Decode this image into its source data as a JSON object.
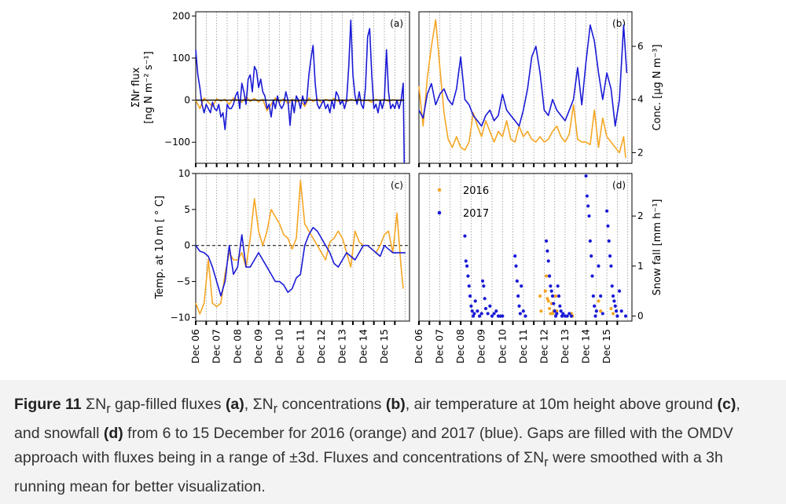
{
  "colors": {
    "y2016": "#f5a623",
    "y2017": "#1a1ad6",
    "zero_line": "#000000",
    "grid": "#888888"
  },
  "legend": {
    "y2016": "2016",
    "y2017": "2017"
  },
  "caption": {
    "fig_label": "Figure 11",
    "t1": " ΣN",
    "sub1": "r",
    "t2": " gap-filled fluxes ",
    "a": "(a)",
    "t3": ", ΣN",
    "sub2": "r",
    "t4": " concentrations ",
    "b": "(b)",
    "t5": ", air temperature at 10m height above ground ",
    "c": "(c)",
    "t6": ", and snowfall ",
    "d": "(d)",
    "t7": " from 6 to 15 December for 2016 (orange) and 2017 (blue). Gaps are filled with the OMDV approach with fluxes being in a range of ±3d. Fluxes and concentrations of ΣN",
    "sub3": "r",
    "t8": " were smoothed with a 3h running mean for better visualization."
  },
  "chart_data": [
    {
      "panel": "(a)",
      "type": "line",
      "ylabel_line1": "ΣNr flux",
      "ylabel_line2": "[ng N m⁻² s⁻¹]",
      "ylim": [
        -150,
        210
      ],
      "xlim": [
        6,
        16.2
      ],
      "yticks": [
        200,
        100,
        0,
        -100
      ],
      "ytick_labels": [
        "200",
        "100",
        "0",
        "−100"
      ],
      "series": [
        {
          "name": "2016",
          "x": [
            6.0,
            6.2,
            6.4,
            6.6,
            6.8,
            7.0,
            7.2,
            7.4,
            7.6,
            7.8,
            8.0,
            8.2,
            8.4,
            8.6,
            8.8,
            9.0,
            9.2,
            9.4,
            9.6,
            9.8,
            10.0,
            10.2,
            10.4,
            10.6,
            10.8,
            11.0,
            11.2,
            11.4,
            11.6,
            11.8,
            12.0,
            12.2,
            12.4,
            12.6,
            12.8,
            13.0,
            13.2,
            13.4,
            13.6,
            13.8,
            14.0,
            14.2,
            14.4,
            14.6,
            14.8,
            15.0,
            15.2,
            15.4,
            15.6,
            15.9
          ],
          "y": [
            0,
            -20,
            5,
            -5,
            -15,
            3,
            -2,
            2,
            -10,
            5,
            0,
            -5,
            8,
            -3,
            4,
            -4,
            2,
            -25,
            -10,
            5,
            -5,
            3,
            -8,
            2,
            -4,
            0,
            -15,
            5,
            -3,
            3,
            -6,
            2,
            -2,
            4,
            -3,
            1,
            -4,
            2,
            -1,
            3,
            -2,
            0,
            -5,
            2,
            -1,
            2,
            -3,
            1,
            0,
            -1
          ]
        },
        {
          "name": "2017",
          "x": [
            6.0,
            6.1,
            6.2,
            6.3,
            6.4,
            6.5,
            6.6,
            6.7,
            6.8,
            6.9,
            7.0,
            7.1,
            7.2,
            7.3,
            7.4,
            7.5,
            7.6,
            7.7,
            7.8,
            7.9,
            8.0,
            8.1,
            8.2,
            8.3,
            8.4,
            8.5,
            8.6,
            8.7,
            8.8,
            8.9,
            9.0,
            9.1,
            9.2,
            9.3,
            9.4,
            9.5,
            9.6,
            9.7,
            9.8,
            9.9,
            10.0,
            10.1,
            10.2,
            10.3,
            10.4,
            10.5,
            10.6,
            10.7,
            10.8,
            10.9,
            11.0,
            11.1,
            11.2,
            11.3,
            11.4,
            11.5,
            11.6,
            11.7,
            11.8,
            11.9,
            12.0,
            12.1,
            12.2,
            12.3,
            12.4,
            12.5,
            12.6,
            12.7,
            12.8,
            12.9,
            13.0,
            13.1,
            13.2,
            13.3,
            13.4,
            13.5,
            13.6,
            13.7,
            13.8,
            13.9,
            14.0,
            14.1,
            14.2,
            14.3,
            14.4,
            14.5,
            14.6,
            14.7,
            14.8,
            14.9,
            15.0,
            15.1,
            15.2,
            15.3,
            15.4,
            15.5,
            15.6,
            15.7,
            15.8,
            15.9,
            15.95
          ],
          "y": [
            120,
            60,
            30,
            -10,
            -30,
            -10,
            -20,
            -30,
            -5,
            -20,
            -25,
            -10,
            -40,
            -30,
            -70,
            -10,
            -20,
            -20,
            -10,
            10,
            20,
            -20,
            40,
            20,
            -10,
            50,
            60,
            20,
            80,
            70,
            30,
            50,
            20,
            10,
            -20,
            -10,
            -40,
            0,
            -20,
            10,
            -10,
            -20,
            -10,
            20,
            0,
            -60,
            0,
            -30,
            10,
            0,
            -20,
            10,
            -10,
            0,
            60,
            100,
            130,
            40,
            -10,
            -20,
            -10,
            0,
            -20,
            -10,
            -30,
            0,
            -20,
            20,
            10,
            -10,
            0,
            -20,
            0,
            80,
            190,
            60,
            10,
            -10,
            20,
            -10,
            -20,
            30,
            150,
            170,
            60,
            -20,
            -10,
            -30,
            0,
            -20,
            0,
            120,
            20,
            -20,
            -10,
            -20,
            0,
            -20,
            0,
            40,
            -150
          ]
        }
      ]
    },
    {
      "panel": "(b)",
      "type": "line",
      "ylabel_right": "Conc. [µg N m⁻³]",
      "ylim": [
        1.6,
        7.3
      ],
      "xlim": [
        6,
        16.2
      ],
      "yticks": [
        2,
        4,
        6
      ],
      "ytick_labels": [
        "2",
        "4",
        "6"
      ],
      "series": [
        {
          "name": "2016",
          "x": [
            6.0,
            6.2,
            6.4,
            6.6,
            6.8,
            7.0,
            7.2,
            7.4,
            7.6,
            7.8,
            8.0,
            8.2,
            8.4,
            8.6,
            8.8,
            9.0,
            9.2,
            9.4,
            9.6,
            9.8,
            10.0,
            10.2,
            10.4,
            10.6,
            10.8,
            11.0,
            11.2,
            11.4,
            11.6,
            11.8,
            12.0,
            12.2,
            12.4,
            12.6,
            12.8,
            13.0,
            13.2,
            13.4,
            13.6,
            13.8,
            14.0,
            14.2,
            14.4,
            14.6,
            14.8,
            15.0,
            15.2,
            15.4,
            15.6,
            15.8,
            15.9
          ],
          "y": [
            4.5,
            3.0,
            4.8,
            6.0,
            7.0,
            5.2,
            3.5,
            2.5,
            2.2,
            2.6,
            2.2,
            2.1,
            2.4,
            3.5,
            3.0,
            2.6,
            3.2,
            2.8,
            2.4,
            2.8,
            2.6,
            3.2,
            2.5,
            2.4,
            3.0,
            2.6,
            2.8,
            2.5,
            2.4,
            2.6,
            2.4,
            2.5,
            2.8,
            3.0,
            2.6,
            2.4,
            2.7,
            3.8,
            2.5,
            2.4,
            2.4,
            2.3,
            3.6,
            2.2,
            3.3,
            2.6,
            2.4,
            2.2,
            2.0,
            2.6,
            1.8
          ]
        },
        {
          "name": "2017",
          "x": [
            6.0,
            6.2,
            6.4,
            6.6,
            6.8,
            7.0,
            7.2,
            7.4,
            7.6,
            7.8,
            8.0,
            8.2,
            8.4,
            8.6,
            8.8,
            9.0,
            9.2,
            9.4,
            9.6,
            9.8,
            10.0,
            10.2,
            10.4,
            10.6,
            10.8,
            11.0,
            11.2,
            11.4,
            11.6,
            11.8,
            12.0,
            12.2,
            12.4,
            12.6,
            12.8,
            13.0,
            13.2,
            13.4,
            13.6,
            13.8,
            14.0,
            14.2,
            14.4,
            14.6,
            14.8,
            15.0,
            15.2,
            15.4,
            15.6,
            15.8,
            15.95
          ],
          "y": [
            3.6,
            3.3,
            4.2,
            4.6,
            3.8,
            4.2,
            4.4,
            4.0,
            3.8,
            4.4,
            5.6,
            4.0,
            3.8,
            3.4,
            3.2,
            3.0,
            3.4,
            3.6,
            3.2,
            3.4,
            4.2,
            3.6,
            3.4,
            3.2,
            3.0,
            3.6,
            4.4,
            5.6,
            6.0,
            5.0,
            3.6,
            3.4,
            4.0,
            3.6,
            3.4,
            3.2,
            3.6,
            4.0,
            5.2,
            3.8,
            5.4,
            6.8,
            6.2,
            5.0,
            4.0,
            5.0,
            4.4,
            3.0,
            4.0,
            6.8,
            5.0
          ]
        }
      ]
    },
    {
      "panel": "(c)",
      "type": "line",
      "ylabel": "Temp. at 10 m [ ° C]",
      "ylim": [
        -10.5,
        10
      ],
      "xlim": [
        6,
        16.2
      ],
      "yticks": [
        10,
        5,
        0,
        -5,
        -10
      ],
      "ytick_labels": [
        "10",
        "5",
        "0",
        "−5",
        "−10"
      ],
      "series": [
        {
          "name": "2016",
          "x": [
            6.0,
            6.2,
            6.4,
            6.6,
            6.8,
            7.0,
            7.2,
            7.4,
            7.6,
            7.8,
            8.0,
            8.2,
            8.4,
            8.6,
            8.8,
            9.0,
            9.2,
            9.4,
            9.6,
            9.8,
            10.0,
            10.2,
            10.4,
            10.6,
            10.8,
            11.0,
            11.2,
            11.4,
            11.6,
            11.8,
            12.0,
            12.2,
            12.4,
            12.6,
            12.8,
            13.0,
            13.2,
            13.4,
            13.6,
            13.8,
            14.0,
            14.2,
            14.4,
            14.6,
            14.8,
            15.0,
            15.2,
            15.4,
            15.6,
            15.8,
            15.9
          ],
          "y": [
            -8,
            -9.5,
            -8,
            -2,
            -8,
            -8.5,
            -8,
            -4,
            -1,
            -2,
            -2,
            -1,
            -3,
            1,
            6.5,
            2,
            0,
            2,
            5,
            4,
            3,
            1.5,
            1,
            -0.5,
            1,
            9,
            3,
            2,
            1,
            0,
            -1,
            -2,
            0.5,
            1,
            2,
            1,
            -1,
            -3,
            2,
            0.5,
            0,
            0,
            -0.5,
            -1,
            0,
            1.5,
            2,
            -1,
            4.5,
            -3,
            -6
          ]
        },
        {
          "name": "2017",
          "x": [
            6.0,
            6.2,
            6.4,
            6.6,
            6.8,
            7.0,
            7.2,
            7.4,
            7.6,
            7.8,
            8.0,
            8.2,
            8.4,
            8.6,
            8.8,
            9.0,
            9.2,
            9.4,
            9.6,
            9.8,
            10.0,
            10.2,
            10.4,
            10.6,
            10.8,
            11.0,
            11.2,
            11.4,
            11.6,
            11.8,
            12.0,
            12.2,
            12.4,
            12.6,
            12.8,
            13.0,
            13.2,
            13.4,
            13.6,
            13.8,
            14.0,
            14.2,
            14.4,
            14.6,
            14.8,
            15.0,
            15.2,
            15.4,
            15.6,
            15.8,
            16.0
          ],
          "y": [
            0,
            -0.8,
            -1.0,
            -1.5,
            -3,
            -5,
            -7,
            -5,
            0,
            -4,
            -3,
            1.5,
            -3,
            -3,
            -2,
            -1,
            -2,
            -3,
            -4,
            -5,
            -5,
            -5.5,
            -6.5,
            -6,
            -4.5,
            -4,
            0,
            1.5,
            2.5,
            2,
            1,
            0,
            -1,
            -2.5,
            -3,
            -2,
            -1,
            -1.5,
            -2,
            -1,
            0,
            0,
            -0.5,
            -1,
            -1.5,
            0,
            -0.5,
            -1,
            -1,
            -1,
            -1
          ]
        }
      ]
    },
    {
      "panel": "(d)",
      "type": "scatter",
      "ylabel_right": "Snow fall [mm h⁻¹]",
      "ylim": [
        -0.1,
        2.85
      ],
      "xlim": [
        6,
        16.2
      ],
      "yticks": [
        0,
        1,
        2
      ],
      "ytick_labels": [
        "0",
        "1",
        "2"
      ],
      "legend": [
        "2016",
        "2017"
      ],
      "series": [
        {
          "name": "2016",
          "x": [
            11.8,
            11.85,
            12.05,
            12.1,
            12.15,
            12.2,
            12.25,
            12.3,
            12.35,
            12.4,
            12.45,
            12.55,
            12.6,
            13.3,
            13.35,
            14.6,
            14.7,
            15.2,
            15.3
          ],
          "y": [
            0.4,
            0.1,
            0.5,
            0.8,
            0.35,
            0.3,
            0.15,
            0.05,
            0.25,
            0.05,
            0.1,
            0.4,
            0.1,
            0.05,
            0.0,
            0.3,
            0.1,
            0.15,
            0.05
          ]
        },
        {
          "name": "2017",
          "x": [
            8.2,
            8.25,
            8.3,
            8.35,
            8.4,
            8.45,
            8.5,
            8.55,
            8.6,
            8.65,
            8.7,
            8.8,
            8.9,
            9.0,
            9.05,
            9.1,
            9.15,
            9.2,
            9.3,
            9.4,
            9.5,
            9.6,
            9.7,
            9.8,
            9.9,
            10.0,
            10.6,
            10.65,
            10.7,
            10.75,
            10.8,
            10.85,
            10.9,
            11.0,
            11.1,
            12.1,
            12.15,
            12.2,
            12.25,
            12.3,
            12.35,
            12.4,
            12.45,
            12.5,
            12.55,
            12.6,
            12.65,
            12.7,
            12.75,
            12.8,
            12.85,
            12.9,
            13.0,
            13.1,
            13.2,
            13.3,
            14.0,
            14.05,
            14.1,
            14.15,
            14.2,
            14.25,
            14.3,
            14.35,
            14.4,
            14.45,
            14.5,
            14.6,
            14.7,
            14.8,
            15.0,
            15.05,
            15.1,
            15.15,
            15.2,
            15.25,
            15.3,
            15.35,
            15.4,
            15.45,
            15.5,
            15.6,
            15.7,
            15.9
          ],
          "y": [
            1.6,
            1.1,
            1.0,
            0.8,
            0.6,
            0.4,
            0.2,
            0.1,
            0.0,
            0.05,
            0.3,
            0.1,
            0.0,
            0.05,
            0.7,
            0.6,
            0.35,
            0.15,
            0.05,
            0.2,
            0.0,
            0.05,
            0.1,
            0.0,
            0.0,
            0.0,
            1.2,
            1.0,
            0.7,
            0.4,
            0.2,
            0.05,
            0.6,
            0.1,
            0.0,
            1.5,
            1.3,
            1.1,
            0.8,
            0.6,
            0.5,
            0.4,
            0.25,
            0.1,
            0.0,
            0.05,
            0.6,
            0.4,
            0.2,
            0.1,
            0.0,
            0.05,
            0.0,
            0.0,
            0.05,
            0.0,
            2.8,
            2.4,
            2.2,
            2.0,
            1.5,
            1.2,
            0.8,
            0.4,
            0.2,
            0.0,
            0.1,
            1.0,
            0.4,
            0.05,
            2.1,
            1.8,
            1.5,
            1.2,
            1.0,
            0.6,
            0.4,
            0.3,
            0.2,
            0.1,
            0.0,
            0.5,
            0.1,
            0.0
          ]
        }
      ]
    },
    {
      "panel": "shared-x",
      "type": "axis",
      "xtick_labels": [
        "Dec 06",
        "Dec 07",
        "Dec 08",
        "Dec 09",
        "Dec 10",
        "Dec 11",
        "Dec 12",
        "Dec 13",
        "Dec 14",
        "Dec 15"
      ],
      "xtick_values": [
        6,
        7,
        8,
        9,
        10,
        11,
        12,
        13,
        14,
        15
      ],
      "minor_gridline_step_days": 0.5
    }
  ]
}
